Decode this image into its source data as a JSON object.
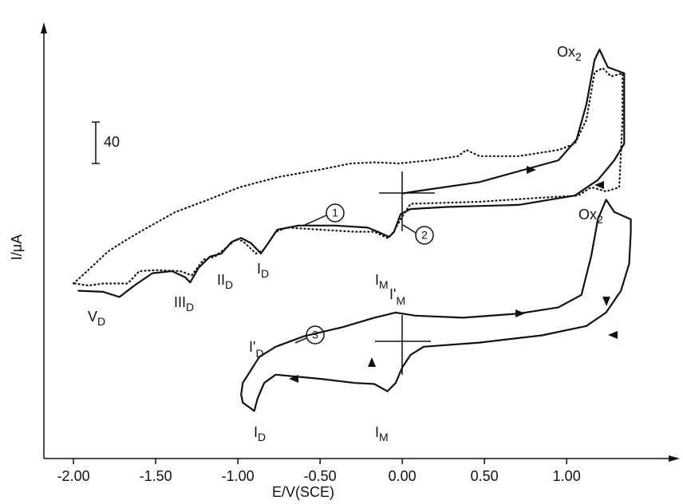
{
  "chart_data": {
    "type": "line",
    "xlabel": "E/V(SCE)",
    "ylabel": "I/μA",
    "xlim": [
      -2.18,
      1.63
    ],
    "ylim": [
      0,
      412
    ],
    "xticks": [
      {
        "value": -2,
        "label": "-2.00"
      },
      {
        "value": -1.5,
        "label": "-1.50"
      },
      {
        "value": -1,
        "label": "-1.00"
      },
      {
        "value": -0.5,
        "label": "-0.50"
      },
      {
        "value": 0,
        "label": "0.00"
      },
      {
        "value": 0.5,
        "label": "0.50"
      },
      {
        "value": 1,
        "label": "1.00"
      }
    ],
    "scale_bar": 40,
    "series": [
      {
        "name": "1",
        "color": "#111111",
        "style": "solid",
        "x": [
          -1.97,
          -1.82,
          -1.72,
          -1.63,
          -1.52,
          -1.4,
          -1.32,
          -1.29,
          -1.24,
          -1.17,
          -1.1,
          -1.04,
          -0.98,
          -0.92,
          -0.86,
          -0.82,
          -0.76,
          -0.63,
          -0.41,
          -0.21,
          -0.12,
          -0.08,
          -0.05,
          -0.01,
          0.05,
          0.27,
          0.71,
          1.05,
          1.19,
          1.29,
          1.35,
          1.35,
          1.25,
          1.2,
          1.17,
          1.12,
          1.06,
          0.95,
          0.47,
          0.08,
          0.0
        ],
        "values": [
          162,
          161,
          156,
          167,
          179,
          181,
          175,
          170,
          184,
          195,
          198,
          209,
          213,
          208,
          198,
          207,
          221,
          225,
          225,
          223,
          217,
          214,
          219,
          236,
          241,
          243,
          245,
          254,
          269,
          288,
          304,
          372,
          378,
          395,
          385,
          342,
          308,
          288,
          267,
          258,
          256
        ]
      },
      {
        "name": "2",
        "color": "#111111",
        "style": "dotted",
        "x": [
          -2.0,
          -1.91,
          -1.79,
          -1.67,
          -1.55,
          -1.38,
          -1.18,
          -0.99,
          -0.75,
          -0.5,
          -0.31,
          -0.17,
          -0.02,
          0.17,
          0.34,
          0.39,
          0.47,
          0.71,
          0.95,
          1.05,
          1.12,
          1.17,
          1.22,
          1.27,
          1.34,
          1.34,
          1.32,
          1.24,
          1.15,
          1.07,
          0.85,
          0.47,
          0.05,
          -0.01,
          -0.06,
          -0.09,
          -0.17,
          -0.29,
          -0.5,
          -0.7,
          -0.77,
          -0.84,
          -0.89,
          -0.97,
          -1.01,
          -1.06,
          -1.14,
          -1.21,
          -1.28,
          -1.35,
          -1.5,
          -1.6,
          -1.67,
          -1.82,
          -1.91,
          -1.99
        ],
        "values": [
          169,
          182,
          200,
          212,
          223,
          238,
          250,
          262,
          272,
          279,
          285,
          286,
          285,
          288,
          292,
          298,
          292,
          292,
          298,
          304,
          327,
          373,
          377,
          369,
          372,
          327,
          262,
          258,
          262,
          254,
          252,
          248,
          246,
          231,
          217,
          213,
          219,
          219,
          221,
          223,
          219,
          202,
          198,
          210,
          212,
          205,
          195,
          192,
          177,
          181,
          182,
          181,
          169,
          169,
          167,
          169
        ]
      },
      {
        "name": "3",
        "color": "#111111",
        "style": "solid",
        "x": [
          -0.98,
          -0.97,
          -0.87,
          -0.77,
          -0.6,
          -0.36,
          -0.17,
          -0.04,
          0.08,
          0.37,
          0.71,
          0.95,
          1.09,
          1.15,
          1.19,
          1.24,
          1.29,
          1.39,
          1.39,
          1.38,
          1.33,
          1.24,
          1.12,
          0.85,
          0.47,
          0.13,
          0.05,
          0.0,
          -0.04,
          -0.09,
          -0.17,
          -0.29,
          -0.5,
          -0.77,
          -0.84,
          -0.88,
          -0.9,
          -0.97,
          -0.98
        ],
        "values": [
          62,
          73,
          98,
          108,
          118,
          127,
          136,
          141,
          138,
          136,
          140,
          146,
          158,
          196,
          231,
          250,
          238,
          231,
          219,
          188,
          162,
          141,
          128,
          119,
          112,
          108,
          100,
          88,
          73,
          65,
          72,
          73,
          77,
          81,
          73,
          58,
          46,
          54,
          62
        ]
      }
    ],
    "annotations": [
      {
        "text": "Ox",
        "sub": "2"
      },
      {
        "text": "Ox",
        "sub": "2"
      },
      {
        "text": "V",
        "sub": "D"
      },
      {
        "text": "III",
        "sub": "D"
      },
      {
        "text": "II",
        "sub": "D"
      },
      {
        "text": "I",
        "sub": "D"
      },
      {
        "text": "I",
        "sub": "M"
      },
      {
        "text": "I'",
        "sub": "M"
      },
      {
        "text": "I'",
        "sub": "D"
      },
      {
        "text": "I",
        "sub": "D"
      },
      {
        "text": "I",
        "sub": "M"
      }
    ]
  }
}
